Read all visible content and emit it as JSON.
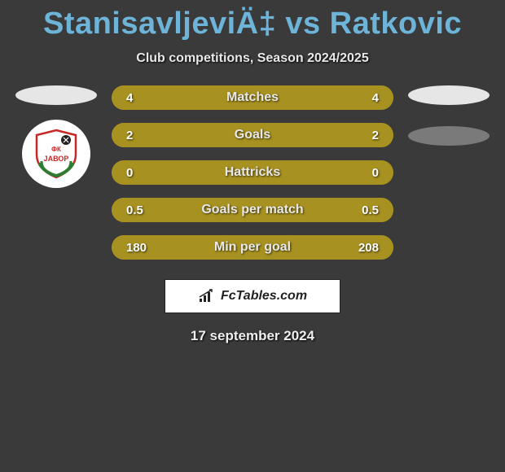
{
  "title": "StanisavljeviÄ‡ vs Ratkovic",
  "subtitle": "Club competitions, Season 2024/2025",
  "date": "17 september 2024",
  "footer_brand": "FcTables.com",
  "left_team": {
    "ellipse_color": "#e6e6e6",
    "badge": {
      "shield_fill": "#ffffff",
      "shield_border": "#c62828",
      "wreath_color": "#2e7d32",
      "text_line1": "ФК",
      "text_line2": "ЈАВОР"
    }
  },
  "right_team": {
    "ellipse_top_color": "#e6e6e6",
    "ellipse_bottom_color": "#7a7a7a"
  },
  "stats": {
    "row_bg": "#a79120",
    "fill_color": "#a79120",
    "track_color": "#a79120",
    "rows": [
      {
        "label": "Matches",
        "left": "4",
        "right": "4",
        "left_pct": 50,
        "right_pct": 50
      },
      {
        "label": "Goals",
        "left": "2",
        "right": "2",
        "left_pct": 50,
        "right_pct": 50
      },
      {
        "label": "Hattricks",
        "left": "0",
        "right": "0",
        "left_pct": 50,
        "right_pct": 50
      },
      {
        "label": "Goals per match",
        "left": "0.5",
        "right": "0.5",
        "left_pct": 50,
        "right_pct": 50
      },
      {
        "label": "Min per goal",
        "left": "180",
        "right": "208",
        "left_pct": 46,
        "right_pct": 54
      }
    ]
  }
}
